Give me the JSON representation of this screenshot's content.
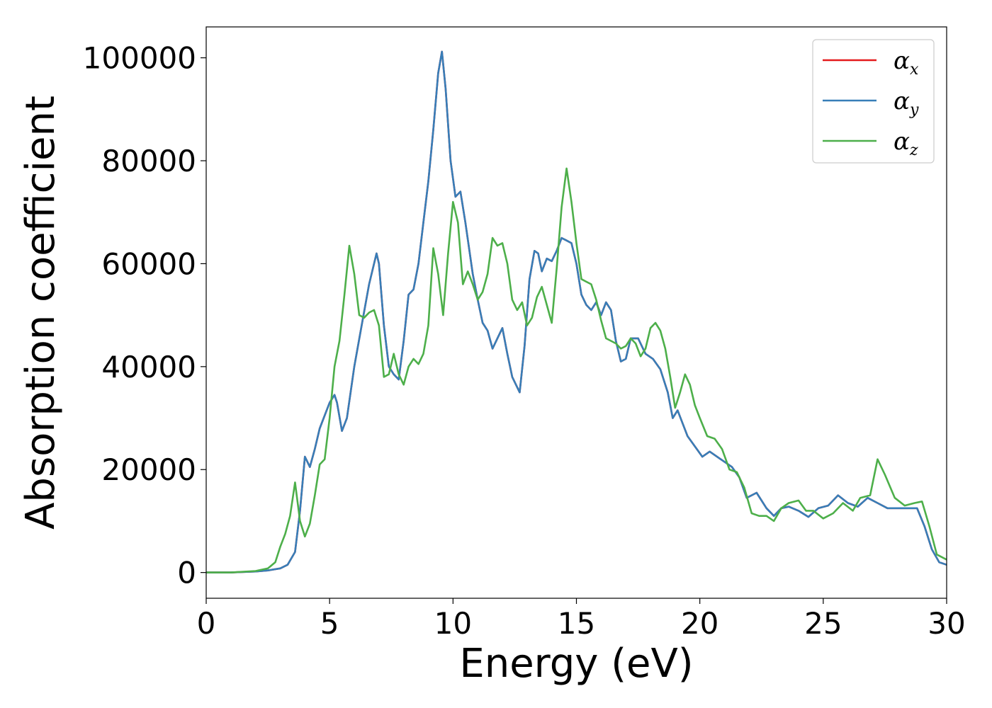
{
  "chart_data": {
    "type": "line",
    "xlabel": "Energy (eV)",
    "ylabel": "Absorption coefficient",
    "xlim": [
      0,
      30
    ],
    "ylim": [
      -5000,
      106000
    ],
    "xticks": [
      "0",
      "5",
      "10",
      "15",
      "20",
      "25",
      "30"
    ],
    "yticks": [
      "0",
      "20000",
      "40000",
      "60000",
      "80000",
      "100000"
    ],
    "grid": false,
    "legend_position": "top-right",
    "series": [
      {
        "name": "α",
        "subscript": "x",
        "color": "#e41a1c",
        "x": [
          0,
          1,
          2,
          2.5,
          3,
          3.3,
          3.6,
          3.8,
          4.0,
          4.2,
          4.4,
          4.6,
          4.8,
          5.0,
          5.2,
          5.3,
          5.5,
          5.7,
          6.0,
          6.3,
          6.6,
          6.9,
          7.0,
          7.2,
          7.4,
          7.6,
          7.8,
          8.0,
          8.2,
          8.4,
          8.6,
          8.8,
          9.0,
          9.2,
          9.4,
          9.55,
          9.7,
          9.9,
          10.1,
          10.3,
          10.5,
          10.8,
          11.0,
          11.2,
          11.4,
          11.6,
          11.8,
          12.0,
          12.2,
          12.4,
          12.7,
          12.9,
          13.1,
          13.3,
          13.45,
          13.6,
          13.8,
          14.0,
          14.2,
          14.4,
          14.6,
          14.8,
          15.0,
          15.2,
          15.4,
          15.6,
          15.8,
          16.0,
          16.2,
          16.4,
          16.6,
          16.8,
          17.0,
          17.2,
          17.5,
          17.8,
          18.1,
          18.4,
          18.7,
          18.9,
          19.1,
          19.3,
          19.5,
          19.8,
          20.1,
          20.4,
          20.7,
          21.0,
          21.3,
          21.6,
          21.9,
          22.3,
          22.7,
          23.0,
          23.3,
          23.6,
          24.0,
          24.4,
          24.8,
          25.2,
          25.6,
          26.0,
          26.4,
          26.8,
          27.2,
          27.6,
          28.0,
          28.4,
          28.8,
          29.1,
          29.4,
          29.7,
          30.0
        ],
        "values": [
          0,
          0,
          200,
          400,
          800,
          1500,
          4000,
          12000,
          22500,
          20500,
          24000,
          28000,
          30500,
          33000,
          34500,
          33000,
          27500,
          30000,
          40000,
          48000,
          56000,
          62000,
          60000,
          48000,
          40000,
          38500,
          37500,
          45000,
          54000,
          55000,
          60000,
          68000,
          76000,
          86000,
          97000,
          101200,
          94000,
          80000,
          73000,
          74000,
          68000,
          58000,
          53000,
          48500,
          47000,
          43500,
          45500,
          47500,
          42500,
          38000,
          35000,
          44000,
          57000,
          62500,
          62000,
          58500,
          61000,
          60500,
          62500,
          65000,
          64500,
          64000,
          60000,
          54000,
          52000,
          51000,
          52500,
          50000,
          52500,
          51000,
          45000,
          41000,
          41500,
          45500,
          45500,
          42500,
          41500,
          39500,
          35000,
          30000,
          31500,
          29000,
          26500,
          24500,
          22500,
          23500,
          22500,
          21500,
          20500,
          18500,
          14500,
          15500,
          12500,
          11000,
          12500,
          12800,
          12000,
          10800,
          12500,
          13000,
          15000,
          13500,
          12800,
          14500,
          13500,
          12500,
          12500,
          12500,
          12500,
          9000,
          4500,
          2000,
          1500
        ]
      },
      {
        "name": "α",
        "subscript": "y",
        "color": "#377eb8",
        "x": [
          0,
          1,
          2,
          2.5,
          3,
          3.3,
          3.6,
          3.8,
          4.0,
          4.2,
          4.4,
          4.6,
          4.8,
          5.0,
          5.2,
          5.3,
          5.5,
          5.7,
          6.0,
          6.3,
          6.6,
          6.9,
          7.0,
          7.2,
          7.4,
          7.6,
          7.8,
          8.0,
          8.2,
          8.4,
          8.6,
          8.8,
          9.0,
          9.2,
          9.4,
          9.55,
          9.7,
          9.9,
          10.1,
          10.3,
          10.5,
          10.8,
          11.0,
          11.2,
          11.4,
          11.6,
          11.8,
          12.0,
          12.2,
          12.4,
          12.7,
          12.9,
          13.1,
          13.3,
          13.45,
          13.6,
          13.8,
          14.0,
          14.2,
          14.4,
          14.6,
          14.8,
          15.0,
          15.2,
          15.4,
          15.6,
          15.8,
          16.0,
          16.2,
          16.4,
          16.6,
          16.8,
          17.0,
          17.2,
          17.5,
          17.8,
          18.1,
          18.4,
          18.7,
          18.9,
          19.1,
          19.3,
          19.5,
          19.8,
          20.1,
          20.4,
          20.7,
          21.0,
          21.3,
          21.6,
          21.9,
          22.3,
          22.7,
          23.0,
          23.3,
          23.6,
          24.0,
          24.4,
          24.8,
          25.2,
          25.6,
          26.0,
          26.4,
          26.8,
          27.2,
          27.6,
          28.0,
          28.4,
          28.8,
          29.1,
          29.4,
          29.7,
          30.0
        ],
        "values": [
          0,
          0,
          200,
          400,
          800,
          1500,
          4000,
          12000,
          22500,
          20500,
          24000,
          28000,
          30500,
          33000,
          34500,
          33000,
          27500,
          30000,
          40000,
          48000,
          56000,
          62000,
          60000,
          48000,
          40000,
          38500,
          37500,
          45000,
          54000,
          55000,
          60000,
          68000,
          76000,
          86000,
          97000,
          101200,
          94000,
          80000,
          73000,
          74000,
          68000,
          58000,
          53000,
          48500,
          47000,
          43500,
          45500,
          47500,
          42500,
          38000,
          35000,
          44000,
          57000,
          62500,
          62000,
          58500,
          61000,
          60500,
          62500,
          65000,
          64500,
          64000,
          60000,
          54000,
          52000,
          51000,
          52500,
          50000,
          52500,
          51000,
          45000,
          41000,
          41500,
          45500,
          45500,
          42500,
          41500,
          39500,
          35000,
          30000,
          31500,
          29000,
          26500,
          24500,
          22500,
          23500,
          22500,
          21500,
          20500,
          18500,
          14500,
          15500,
          12500,
          11000,
          12500,
          12800,
          12000,
          10800,
          12500,
          13000,
          15000,
          13500,
          12800,
          14500,
          13500,
          12500,
          12500,
          12500,
          12500,
          9000,
          4500,
          2000,
          1500
        ]
      },
      {
        "name": "α",
        "subscript": "z",
        "color": "#4daf4a",
        "x": [
          0,
          1,
          2,
          2.5,
          2.8,
          3.0,
          3.2,
          3.4,
          3.6,
          3.8,
          4.0,
          4.2,
          4.4,
          4.6,
          4.8,
          5.0,
          5.2,
          5.4,
          5.6,
          5.8,
          6.0,
          6.2,
          6.4,
          6.6,
          6.8,
          7.0,
          7.2,
          7.4,
          7.6,
          7.8,
          8.0,
          8.2,
          8.4,
          8.6,
          8.8,
          9.0,
          9.2,
          9.4,
          9.6,
          9.8,
          10.0,
          10.2,
          10.4,
          10.6,
          10.8,
          11.0,
          11.2,
          11.4,
          11.6,
          11.8,
          12.0,
          12.2,
          12.4,
          12.6,
          12.8,
          13.0,
          13.2,
          13.4,
          13.6,
          13.8,
          14.0,
          14.2,
          14.4,
          14.6,
          14.8,
          15.0,
          15.2,
          15.4,
          15.6,
          15.8,
          16.0,
          16.2,
          16.4,
          16.6,
          16.8,
          17.0,
          17.2,
          17.4,
          17.6,
          17.8,
          18.0,
          18.2,
          18.4,
          18.6,
          18.8,
          19.0,
          19.2,
          19.4,
          19.6,
          19.8,
          20.0,
          20.3,
          20.6,
          20.9,
          21.2,
          21.5,
          21.8,
          22.1,
          22.4,
          22.7,
          23.0,
          23.3,
          23.6,
          24.0,
          24.3,
          24.6,
          25.0,
          25.4,
          25.8,
          26.2,
          26.5,
          26.9,
          27.2,
          27.5,
          27.9,
          28.3,
          28.7,
          29.0,
          29.3,
          29.6,
          30.0
        ],
        "values": [
          0,
          0,
          300,
          800,
          2000,
          5000,
          7500,
          11000,
          17500,
          10000,
          7000,
          9500,
          15000,
          21000,
          22000,
          30000,
          40000,
          45000,
          54000,
          63500,
          58000,
          50000,
          49500,
          50500,
          51000,
          48000,
          38000,
          38500,
          42500,
          38500,
          36500,
          40000,
          41500,
          40500,
          42500,
          48000,
          63000,
          58000,
          50000,
          62000,
          72000,
          68000,
          56000,
          58500,
          56000,
          53000,
          54500,
          58000,
          65000,
          63500,
          64000,
          60000,
          53000,
          51000,
          52500,
          48000,
          49500,
          53500,
          55500,
          52000,
          48500,
          59000,
          71000,
          78500,
          72000,
          64000,
          57000,
          56500,
          56000,
          53000,
          49000,
          45500,
          45000,
          44500,
          43500,
          44000,
          45500,
          44500,
          42000,
          43500,
          47500,
          48500,
          47000,
          43500,
          38000,
          32000,
          35000,
          38500,
          36500,
          32500,
          30000,
          26500,
          26000,
          24000,
          20000,
          19500,
          16500,
          11500,
          11000,
          11000,
          10000,
          12500,
          13500,
          14000,
          12000,
          12000,
          10500,
          11500,
          13500,
          12000,
          14500,
          15000,
          22000,
          19000,
          14500,
          13000,
          13500,
          13800,
          9000,
          3500,
          2500
        ]
      }
    ]
  }
}
